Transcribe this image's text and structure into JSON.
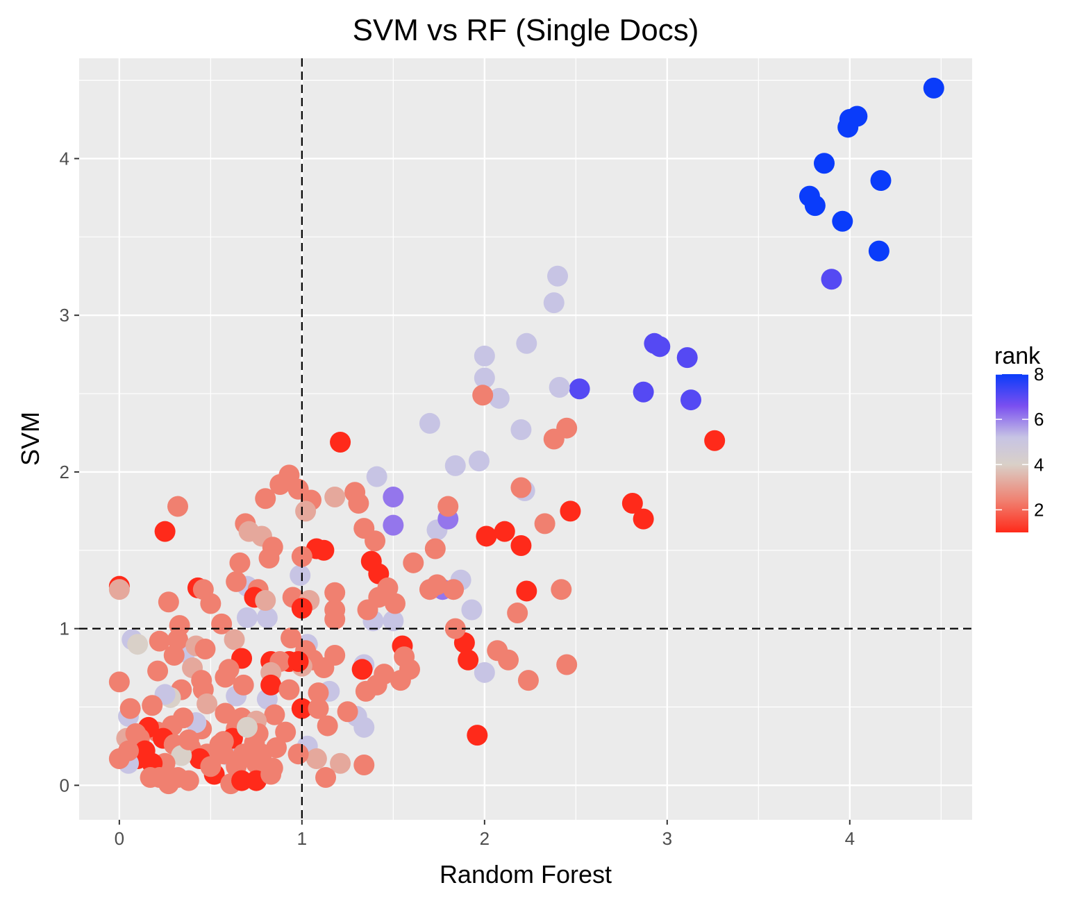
{
  "chart_data": {
    "type": "scatter",
    "title": "SVM vs RF (Single Docs)",
    "xlabel": "Random Forest",
    "ylabel": "SVM",
    "xlim": [
      -0.22,
      4.67
    ],
    "ylim": [
      -0.22,
      4.64
    ],
    "x_ticks": [
      0,
      1,
      2,
      3,
      4
    ],
    "y_ticks": [
      0,
      1,
      2,
      3,
      4
    ],
    "grid": true,
    "reference_lines": [
      {
        "axis": "x",
        "value": 1,
        "style": "dashed"
      },
      {
        "axis": "y",
        "value": 1,
        "style": "dashed"
      }
    ],
    "legend": {
      "title": "rank",
      "placement": "right",
      "ticks": [
        2,
        4,
        6,
        8
      ],
      "range": [
        1,
        8
      ],
      "gradient": [
        "#ff2a1a",
        "#f08070",
        "#d9d0c8",
        "#c7c4e4",
        "#7a4ff0",
        "#0a3cfa"
      ]
    },
    "colors": {
      "panel": "#ebebeb",
      "grid": "#ffffff"
    },
    "points": [
      {
        "x": 4.46,
        "y": 4.45,
        "rank": 8
      },
      {
        "x": 4.04,
        "y": 4.27,
        "rank": 8
      },
      {
        "x": 4.0,
        "y": 4.25,
        "rank": 8
      },
      {
        "x": 3.99,
        "y": 4.2,
        "rank": 8
      },
      {
        "x": 3.86,
        "y": 3.97,
        "rank": 8
      },
      {
        "x": 4.17,
        "y": 3.86,
        "rank": 8
      },
      {
        "x": 3.78,
        "y": 3.76,
        "rank": 8
      },
      {
        "x": 3.81,
        "y": 3.7,
        "rank": 8
      },
      {
        "x": 3.96,
        "y": 3.6,
        "rank": 8
      },
      {
        "x": 4.16,
        "y": 3.41,
        "rank": 8
      },
      {
        "x": 3.9,
        "y": 3.23,
        "rank": 7
      },
      {
        "x": 2.93,
        "y": 2.82,
        "rank": 7
      },
      {
        "x": 2.96,
        "y": 2.8,
        "rank": 7
      },
      {
        "x": 3.11,
        "y": 2.73,
        "rank": 7
      },
      {
        "x": 2.52,
        "y": 2.53,
        "rank": 7
      },
      {
        "x": 2.87,
        "y": 2.51,
        "rank": 7
      },
      {
        "x": 3.13,
        "y": 2.46,
        "rank": 7
      },
      {
        "x": 2.4,
        "y": 3.25,
        "rank": 5
      },
      {
        "x": 2.38,
        "y": 3.08,
        "rank": 5
      },
      {
        "x": 2.23,
        "y": 2.82,
        "rank": 5
      },
      {
        "x": 2.0,
        "y": 2.74,
        "rank": 5
      },
      {
        "x": 2.0,
        "y": 2.6,
        "rank": 5
      },
      {
        "x": 2.41,
        "y": 2.54,
        "rank": 5
      },
      {
        "x": 2.08,
        "y": 2.47,
        "rank": 5
      },
      {
        "x": 1.7,
        "y": 2.31,
        "rank": 5
      },
      {
        "x": 2.2,
        "y": 2.27,
        "rank": 5
      },
      {
        "x": 1.97,
        "y": 2.07,
        "rank": 5
      },
      {
        "x": 1.84,
        "y": 2.04,
        "rank": 5
      },
      {
        "x": 1.41,
        "y": 1.97,
        "rank": 5
      },
      {
        "x": 2.22,
        "y": 1.88,
        "rank": 5
      },
      {
        "x": 1.74,
        "y": 1.63,
        "rank": 5
      },
      {
        "x": 1.87,
        "y": 1.31,
        "rank": 5
      },
      {
        "x": 1.93,
        "y": 1.12,
        "rank": 5
      },
      {
        "x": 2.0,
        "y": 0.72,
        "rank": 5
      },
      {
        "x": 1.39,
        "y": 1.05,
        "rank": 5
      },
      {
        "x": 1.5,
        "y": 1.05,
        "rank": 5
      },
      {
        "x": 1.34,
        "y": 0.77,
        "rank": 5
      },
      {
        "x": 1.3,
        "y": 0.44,
        "rank": 5
      },
      {
        "x": 1.34,
        "y": 0.37,
        "rank": 5
      },
      {
        "x": 0.99,
        "y": 1.34,
        "rank": 5
      },
      {
        "x": 0.7,
        "y": 1.27,
        "rank": 5
      },
      {
        "x": 0.7,
        "y": 1.07,
        "rank": 5
      },
      {
        "x": 0.81,
        "y": 1.07,
        "rank": 5
      },
      {
        "x": 0.07,
        "y": 0.93,
        "rank": 5
      },
      {
        "x": 1.03,
        "y": 0.9,
        "rank": 5
      },
      {
        "x": 0.36,
        "y": 0.85,
        "rank": 5
      },
      {
        "x": 0.64,
        "y": 0.57,
        "rank": 5
      },
      {
        "x": 0.81,
        "y": 0.55,
        "rank": 5
      },
      {
        "x": 1.15,
        "y": 0.6,
        "rank": 5
      },
      {
        "x": 1.03,
        "y": 0.25,
        "rank": 5
      },
      {
        "x": 0.6,
        "y": 0.19,
        "rank": 5
      },
      {
        "x": 0.05,
        "y": 0.44,
        "rank": 5
      },
      {
        "x": 1.5,
        "y": 1.84,
        "rank": 6
      },
      {
        "x": 1.5,
        "y": 1.66,
        "rank": 6
      },
      {
        "x": 1.8,
        "y": 1.7,
        "rank": 6
      },
      {
        "x": 1.77,
        "y": 1.25,
        "rank": 6
      },
      {
        "x": 1.21,
        "y": 2.19,
        "rank": 1
      },
      {
        "x": 3.26,
        "y": 2.2,
        "rank": 1
      },
      {
        "x": 2.81,
        "y": 1.8,
        "rank": 1
      },
      {
        "x": 2.87,
        "y": 1.7,
        "rank": 1
      },
      {
        "x": 2.47,
        "y": 1.75,
        "rank": 1
      },
      {
        "x": 2.11,
        "y": 1.62,
        "rank": 1
      },
      {
        "x": 2.01,
        "y": 1.59,
        "rank": 1
      },
      {
        "x": 2.2,
        "y": 1.53,
        "rank": 1
      },
      {
        "x": 2.23,
        "y": 1.24,
        "rank": 1
      },
      {
        "x": 1.08,
        "y": 1.51,
        "rank": 1
      },
      {
        "x": 1.12,
        "y": 1.5,
        "rank": 1
      },
      {
        "x": 1.38,
        "y": 1.43,
        "rank": 1
      },
      {
        "x": 1.42,
        "y": 1.35,
        "rank": 1
      },
      {
        "x": 1.55,
        "y": 0.89,
        "rank": 1
      },
      {
        "x": 1.89,
        "y": 0.91,
        "rank": 1
      },
      {
        "x": 1.91,
        "y": 0.8,
        "rank": 1
      },
      {
        "x": 1.96,
        "y": 0.32,
        "rank": 1
      },
      {
        "x": 1.0,
        "y": 0.49,
        "rank": 1
      },
      {
        "x": 0.93,
        "y": 0.79,
        "rank": 1
      },
      {
        "x": 1.33,
        "y": 0.74,
        "rank": 1
      },
      {
        "x": 2.45,
        "y": 2.28,
        "rank": 2
      },
      {
        "x": 2.38,
        "y": 2.21,
        "rank": 2
      },
      {
        "x": 1.99,
        "y": 2.49,
        "rank": 2
      },
      {
        "x": 2.2,
        "y": 1.9,
        "rank": 2
      },
      {
        "x": 2.33,
        "y": 1.67,
        "rank": 2
      },
      {
        "x": 1.8,
        "y": 1.78,
        "rank": 2
      },
      {
        "x": 1.61,
        "y": 1.42,
        "rank": 2
      },
      {
        "x": 1.73,
        "y": 1.51,
        "rank": 2
      },
      {
        "x": 1.74,
        "y": 1.28,
        "rank": 2
      },
      {
        "x": 1.7,
        "y": 1.25,
        "rank": 2
      },
      {
        "x": 1.83,
        "y": 1.25,
        "rank": 2
      },
      {
        "x": 1.84,
        "y": 1.0,
        "rank": 2
      },
      {
        "x": 2.42,
        "y": 1.25,
        "rank": 2
      },
      {
        "x": 2.18,
        "y": 1.1,
        "rank": 2
      },
      {
        "x": 2.07,
        "y": 0.86,
        "rank": 2
      },
      {
        "x": 2.13,
        "y": 0.8,
        "rank": 2
      },
      {
        "x": 2.45,
        "y": 0.77,
        "rank": 2
      },
      {
        "x": 2.24,
        "y": 0.67,
        "rank": 2
      },
      {
        "x": 1.56,
        "y": 0.82,
        "rank": 2
      },
      {
        "x": 1.59,
        "y": 0.74,
        "rank": 2
      },
      {
        "x": 1.54,
        "y": 0.67,
        "rank": 2
      },
      {
        "x": 1.45,
        "y": 0.71,
        "rank": 2
      },
      {
        "x": 1.41,
        "y": 0.64,
        "rank": 2
      },
      {
        "x": 1.35,
        "y": 0.6,
        "rank": 2
      },
      {
        "x": 1.47,
        "y": 1.26,
        "rank": 2
      },
      {
        "x": 1.42,
        "y": 1.2,
        "rank": 2
      },
      {
        "x": 1.51,
        "y": 1.16,
        "rank": 2
      },
      {
        "x": 1.36,
        "y": 1.12,
        "rank": 2
      },
      {
        "x": 1.34,
        "y": 1.64,
        "rank": 2
      },
      {
        "x": 1.4,
        "y": 1.56,
        "rank": 2
      },
      {
        "x": 1.29,
        "y": 1.87,
        "rank": 2
      },
      {
        "x": 1.31,
        "y": 1.8,
        "rank": 2
      },
      {
        "x": 1.18,
        "y": 1.84,
        "rank": 3
      },
      {
        "x": 1.18,
        "y": 1.23,
        "rank": 2
      },
      {
        "x": 1.18,
        "y": 1.12,
        "rank": 2
      },
      {
        "x": 1.18,
        "y": 1.06,
        "rank": 2
      },
      {
        "x": 1.18,
        "y": 0.83,
        "rank": 2
      },
      {
        "x": 1.12,
        "y": 0.75,
        "rank": 2
      },
      {
        "x": 1.09,
        "y": 0.59,
        "rank": 2
      },
      {
        "x": 1.09,
        "y": 0.49,
        "rank": 2
      },
      {
        "x": 1.14,
        "y": 0.38,
        "rank": 2
      },
      {
        "x": 1.25,
        "y": 0.47,
        "rank": 2
      },
      {
        "x": 1.34,
        "y": 0.13,
        "rank": 2
      },
      {
        "x": 1.21,
        "y": 0.14,
        "rank": 3
      },
      {
        "x": 1.13,
        "y": 0.05,
        "rank": 2
      },
      {
        "x": 1.08,
        "y": 0.17,
        "rank": 3
      },
      {
        "x": 0.98,
        "y": 0.2,
        "rank": 2
      },
      {
        "x": 0.93,
        "y": 1.98,
        "rank": 2
      },
      {
        "x": 0.88,
        "y": 1.92,
        "rank": 2
      },
      {
        "x": 0.98,
        "y": 1.89,
        "rank": 2
      },
      {
        "x": 1.05,
        "y": 1.82,
        "rank": 2
      },
      {
        "x": 1.02,
        "y": 1.75,
        "rank": 3
      },
      {
        "x": 0.8,
        "y": 1.83,
        "rank": 2
      },
      {
        "x": 0.32,
        "y": 1.78,
        "rank": 2
      },
      {
        "x": 0.69,
        "y": 1.67,
        "rank": 2
      },
      {
        "x": 0.71,
        "y": 1.62,
        "rank": 3
      },
      {
        "x": 0.78,
        "y": 1.59,
        "rank": 3
      },
      {
        "x": 0.25,
        "y": 1.62,
        "rank": 1
      },
      {
        "x": 0.84,
        "y": 1.52,
        "rank": 2
      },
      {
        "x": 0.82,
        "y": 1.45,
        "rank": 2
      },
      {
        "x": 0.66,
        "y": 1.42,
        "rank": 2
      },
      {
        "x": 1.0,
        "y": 1.46,
        "rank": 2
      },
      {
        "x": 0.0,
        "y": 1.27,
        "rank": 1
      },
      {
        "x": 0.0,
        "y": 1.25,
        "rank": 3
      },
      {
        "x": 0.43,
        "y": 1.26,
        "rank": 1
      },
      {
        "x": 0.46,
        "y": 1.25,
        "rank": 2
      },
      {
        "x": 0.64,
        "y": 1.3,
        "rank": 2
      },
      {
        "x": 0.76,
        "y": 1.25,
        "rank": 2
      },
      {
        "x": 0.74,
        "y": 1.2,
        "rank": 1
      },
      {
        "x": 0.27,
        "y": 1.17,
        "rank": 2
      },
      {
        "x": 0.5,
        "y": 1.16,
        "rank": 2
      },
      {
        "x": 0.8,
        "y": 1.18,
        "rank": 3
      },
      {
        "x": 0.95,
        "y": 1.2,
        "rank": 2
      },
      {
        "x": 1.04,
        "y": 1.18,
        "rank": 3
      },
      {
        "x": 1.0,
        "y": 1.13,
        "rank": 1
      },
      {
        "x": 0.56,
        "y": 1.03,
        "rank": 2
      },
      {
        "x": 0.33,
        "y": 1.02,
        "rank": 2
      },
      {
        "x": 0.22,
        "y": 0.92,
        "rank": 2
      },
      {
        "x": 0.32,
        "y": 0.93,
        "rank": 2
      },
      {
        "x": 0.1,
        "y": 0.9,
        "rank": 4
      },
      {
        "x": 0.42,
        "y": 0.89,
        "rank": 3
      },
      {
        "x": 0.63,
        "y": 0.93,
        "rank": 3
      },
      {
        "x": 0.47,
        "y": 0.87,
        "rank": 2
      },
      {
        "x": 0.3,
        "y": 0.83,
        "rank": 2
      },
      {
        "x": 0.67,
        "y": 0.81,
        "rank": 1
      },
      {
        "x": 0.83,
        "y": 0.79,
        "rank": 1
      },
      {
        "x": 0.94,
        "y": 0.94,
        "rank": 2
      },
      {
        "x": 0.88,
        "y": 0.79,
        "rank": 2
      },
      {
        "x": 1.02,
        "y": 0.86,
        "rank": 2
      },
      {
        "x": 1.06,
        "y": 0.8,
        "rank": 2
      },
      {
        "x": 1.0,
        "y": 0.76,
        "rank": 3
      },
      {
        "x": 0.98,
        "y": 0.79,
        "rank": 1
      },
      {
        "x": 0.21,
        "y": 0.73,
        "rank": 2
      },
      {
        "x": 0.4,
        "y": 0.75,
        "rank": 3
      },
      {
        "x": 0.6,
        "y": 0.74,
        "rank": 2
      },
      {
        "x": 0.58,
        "y": 0.69,
        "rank": 2
      },
      {
        "x": 0.68,
        "y": 0.64,
        "rank": 2
      },
      {
        "x": 0.83,
        "y": 0.72,
        "rank": 3
      },
      {
        "x": 0.83,
        "y": 0.64,
        "rank": 1
      },
      {
        "x": 0.0,
        "y": 0.66,
        "rank": 2
      },
      {
        "x": 0.45,
        "y": 0.67,
        "rank": 2
      },
      {
        "x": 0.46,
        "y": 0.61,
        "rank": 2
      },
      {
        "x": 0.34,
        "y": 0.61,
        "rank": 2
      },
      {
        "x": 0.28,
        "y": 0.56,
        "rank": 4
      },
      {
        "x": 0.25,
        "y": 0.58,
        "rank": 5
      },
      {
        "x": 0.18,
        "y": 0.51,
        "rank": 2
      },
      {
        "x": 0.06,
        "y": 0.49,
        "rank": 2
      },
      {
        "x": 0.48,
        "y": 0.52,
        "rank": 3
      },
      {
        "x": 0.58,
        "y": 0.46,
        "rank": 2
      },
      {
        "x": 0.67,
        "y": 0.43,
        "rank": 2
      },
      {
        "x": 0.85,
        "y": 0.45,
        "rank": 2
      },
      {
        "x": 0.93,
        "y": 0.61,
        "rank": 2
      },
      {
        "x": 0.91,
        "y": 0.34,
        "rank": 2
      },
      {
        "x": 0.75,
        "y": 0.41,
        "rank": 3
      },
      {
        "x": 0.76,
        "y": 0.33,
        "rank": 2
      },
      {
        "x": 0.64,
        "y": 0.36,
        "rank": 2
      },
      {
        "x": 0.62,
        "y": 0.3,
        "rank": 1
      },
      {
        "x": 0.55,
        "y": 0.26,
        "rank": 2
      },
      {
        "x": 0.45,
        "y": 0.36,
        "rank": 2
      },
      {
        "x": 0.42,
        "y": 0.4,
        "rank": 5
      },
      {
        "x": 0.35,
        "y": 0.43,
        "rank": 2
      },
      {
        "x": 0.29,
        "y": 0.38,
        "rank": 2
      },
      {
        "x": 0.21,
        "y": 0.34,
        "rank": 2
      },
      {
        "x": 0.16,
        "y": 0.37,
        "rank": 1
      },
      {
        "x": 0.11,
        "y": 0.3,
        "rank": 2
      },
      {
        "x": 0.04,
        "y": 0.3,
        "rank": 3
      },
      {
        "x": 0.09,
        "y": 0.33,
        "rank": 2
      },
      {
        "x": 0.24,
        "y": 0.3,
        "rank": 1
      },
      {
        "x": 0.3,
        "y": 0.26,
        "rank": 2
      },
      {
        "x": 0.39,
        "y": 0.24,
        "rank": 2
      },
      {
        "x": 0.48,
        "y": 0.2,
        "rank": 2
      },
      {
        "x": 0.57,
        "y": 0.2,
        "rank": 2
      },
      {
        "x": 0.68,
        "y": 0.2,
        "rank": 2
      },
      {
        "x": 0.78,
        "y": 0.2,
        "rank": 2
      },
      {
        "x": 0.84,
        "y": 0.11,
        "rank": 2
      },
      {
        "x": 0.75,
        "y": 0.14,
        "rank": 2
      },
      {
        "x": 0.64,
        "y": 0.12,
        "rank": 2
      },
      {
        "x": 0.52,
        "y": 0.07,
        "rank": 1
      },
      {
        "x": 0.44,
        "y": 0.17,
        "rank": 1
      },
      {
        "x": 0.34,
        "y": 0.19,
        "rank": 4
      },
      {
        "x": 0.25,
        "y": 0.14,
        "rank": 2
      },
      {
        "x": 0.14,
        "y": 0.22,
        "rank": 1
      },
      {
        "x": 0.1,
        "y": 0.17,
        "rank": 1
      },
      {
        "x": 0.05,
        "y": 0.14,
        "rank": 5
      },
      {
        "x": 0.0,
        "y": 0.17,
        "rank": 2
      },
      {
        "x": 0.18,
        "y": 0.14,
        "rank": 1
      },
      {
        "x": 0.17,
        "y": 0.05,
        "rank": 2
      },
      {
        "x": 0.27,
        "y": 0.01,
        "rank": 2
      },
      {
        "x": 0.38,
        "y": 0.03,
        "rank": 2
      },
      {
        "x": 0.61,
        "y": 0.01,
        "rank": 2
      },
      {
        "x": 0.67,
        "y": 0.03,
        "rank": 1
      },
      {
        "x": 0.75,
        "y": 0.03,
        "rank": 1
      },
      {
        "x": 0.83,
        "y": 0.07,
        "rank": 2
      },
      {
        "x": 0.5,
        "y": 0.12,
        "rank": 2
      },
      {
        "x": 0.32,
        "y": 0.05,
        "rank": 2
      },
      {
        "x": 0.22,
        "y": 0.05,
        "rank": 2
      },
      {
        "x": 0.57,
        "y": 0.28,
        "rank": 2
      },
      {
        "x": 0.38,
        "y": 0.29,
        "rank": 2
      },
      {
        "x": 0.74,
        "y": 0.27,
        "rank": 2
      },
      {
        "x": 0.86,
        "y": 0.24,
        "rank": 2
      },
      {
        "x": 0.7,
        "y": 0.37,
        "rank": 4
      },
      {
        "x": 0.05,
        "y": 0.22,
        "rank": 2
      }
    ]
  }
}
